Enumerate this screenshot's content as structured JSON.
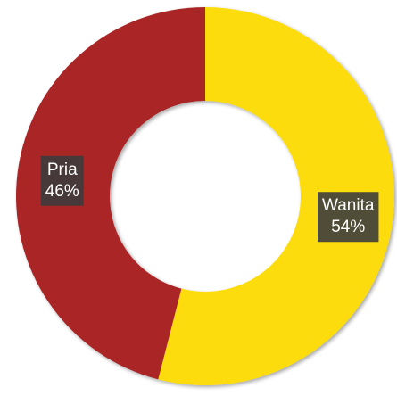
{
  "chart_data": {
    "type": "pie",
    "variant": "donut",
    "categories": [
      "Wanita",
      "Pria"
    ],
    "values": [
      54,
      46
    ],
    "value_labels": [
      "54%",
      "46%"
    ],
    "colors": [
      "#fcdc08",
      "#aa2527"
    ],
    "title": "",
    "legend": "none"
  }
}
